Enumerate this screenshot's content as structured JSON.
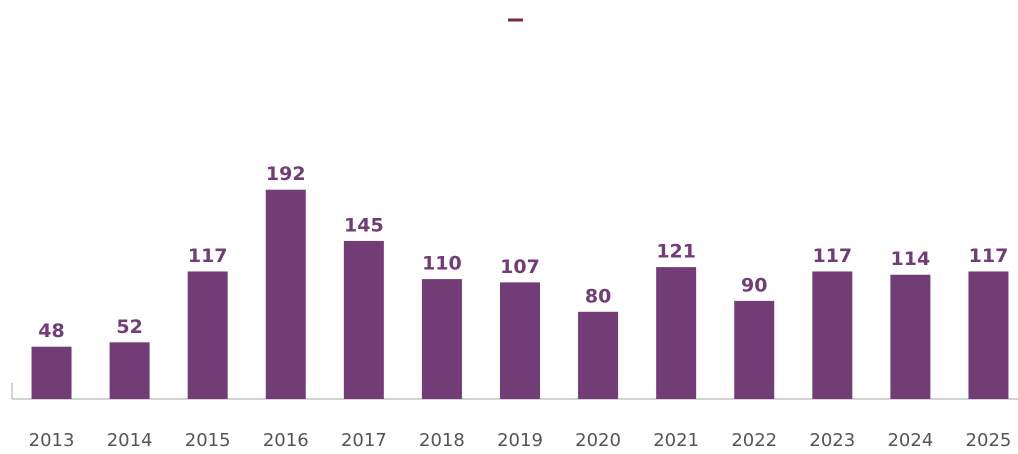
{
  "chart_data": {
    "type": "bar",
    "categories": [
      "2013",
      "2014",
      "2015",
      "2016",
      "2017",
      "2018",
      "2019",
      "2020",
      "2021",
      "2022",
      "2023",
      "2024",
      "2025"
    ],
    "values": [
      48,
      52,
      117,
      192,
      145,
      110,
      107,
      80,
      121,
      90,
      117,
      114,
      117
    ],
    "color": "#723c77",
    "ylim": [
      0,
      200
    ]
  }
}
